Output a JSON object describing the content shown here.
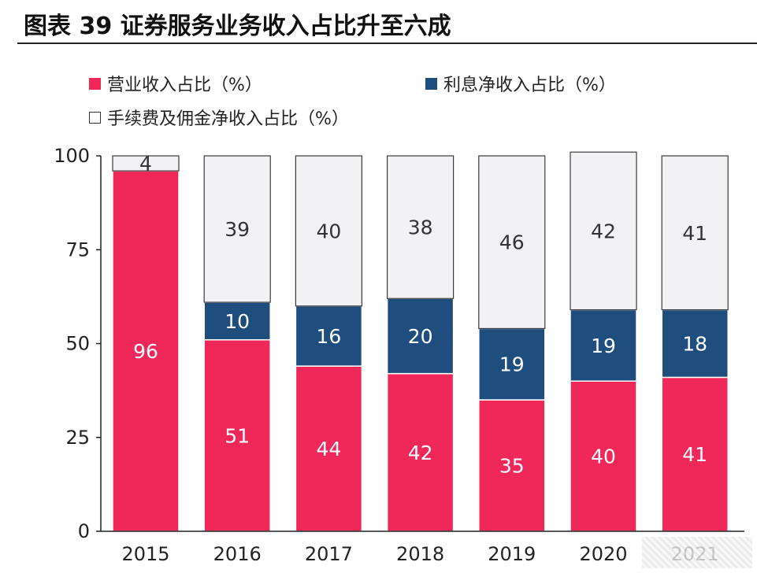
{
  "header": {
    "title": "图表 39 证券服务业务收入占比升至六成"
  },
  "colors": {
    "brokerage": "#F0285A",
    "interest": "#1F4E7E",
    "commission": "#F2F2F5",
    "axis": "#222222"
  },
  "chart_data": {
    "type": "bar",
    "stacked": true,
    "title": "图表 39 证券服务业务收入占比升至六成",
    "categories": [
      "2015",
      "2016",
      "2017",
      "2018",
      "2019",
      "2020",
      "2021"
    ],
    "series": [
      {
        "name": "营业收入占比（%）",
        "values": [
          96,
          51,
          44,
          42,
          35,
          40,
          41
        ],
        "labels": [
          "96",
          "51",
          "44",
          "42",
          "35",
          "40",
          "41"
        ]
      },
      {
        "name": "利息净收入占比（%）",
        "values": [
          0,
          10,
          16,
          20,
          19,
          19,
          18
        ],
        "labels": [
          "",
          "10",
          "16",
          "20",
          "19",
          "19",
          "18"
        ]
      },
      {
        "name": "手续费及佣金净收入占比（%）",
        "values": [
          4,
          39,
          40,
          38,
          46,
          42,
          41
        ],
        "labels": [
          "4",
          "39",
          "40",
          "38",
          "46",
          "42",
          "41"
        ]
      }
    ],
    "yticks": [
      "0",
      "25",
      "50",
      "75",
      "100"
    ],
    "ylim": [
      0,
      100
    ],
    "xlabel": "",
    "ylabel": "",
    "legend_position": "top-left"
  }
}
